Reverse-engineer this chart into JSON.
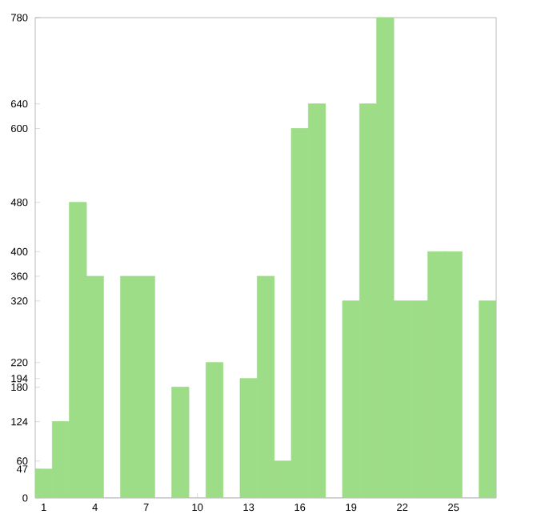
{
  "chart_data": {
    "type": "bar",
    "categories": [
      "1",
      null,
      null,
      "4",
      null,
      null,
      "7",
      null,
      null,
      "10",
      null,
      null,
      "13",
      null,
      null,
      "16",
      null,
      null,
      "19",
      null,
      null,
      "22",
      null,
      null,
      "25",
      null,
      null
    ],
    "values": [
      47,
      124,
      480,
      360,
      0,
      360,
      360,
      0,
      180,
      0,
      220,
      0,
      194,
      360,
      60,
      600,
      640,
      0,
      320,
      640,
      780,
      320,
      320,
      400,
      400,
      0,
      320
    ],
    "color": "#9ddd87",
    "ylim": [
      0,
      780
    ],
    "yticks": [
      0,
      47,
      60,
      124,
      180,
      194,
      220,
      320,
      360,
      400,
      480,
      600,
      640,
      780
    ],
    "grid": false
  }
}
